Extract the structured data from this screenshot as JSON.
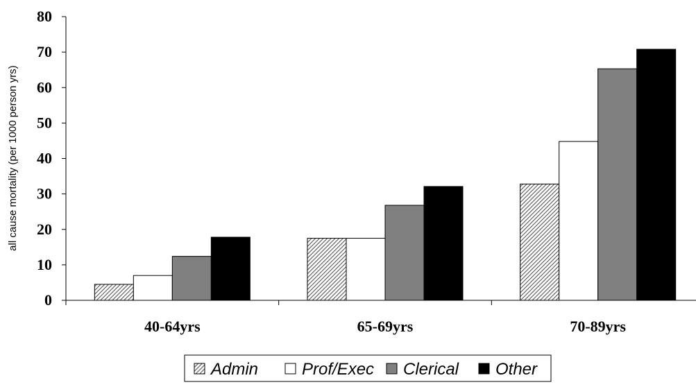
{
  "chart_data": {
    "type": "bar",
    "categories": [
      "40-64yrs",
      "65-69yrs",
      "70-89yrs"
    ],
    "series": [
      {
        "name": "Admin",
        "values": [
          4.5,
          17.5,
          32.8
        ],
        "color": "#bcbcbc",
        "pattern": "hatch"
      },
      {
        "name": "Prof/Exec",
        "values": [
          7.0,
          17.5,
          44.8
        ],
        "color": "#ffffff",
        "pattern": "solid"
      },
      {
        "name": "Clerical",
        "values": [
          12.4,
          26.8,
          65.3
        ],
        "color": "#808080",
        "pattern": "solid"
      },
      {
        "name": "Other",
        "values": [
          17.8,
          32.1,
          70.8
        ],
        "color": "#000000",
        "pattern": "solid"
      }
    ],
    "title": "",
    "xlabel": "",
    "ylabel": "all cause mortality (per 1000 person yrs)",
    "ylim": [
      0,
      80
    ],
    "yticks": [
      0,
      10,
      20,
      30,
      40,
      50,
      60,
      70,
      80
    ],
    "grid": false,
    "legend_position": "bottom"
  }
}
